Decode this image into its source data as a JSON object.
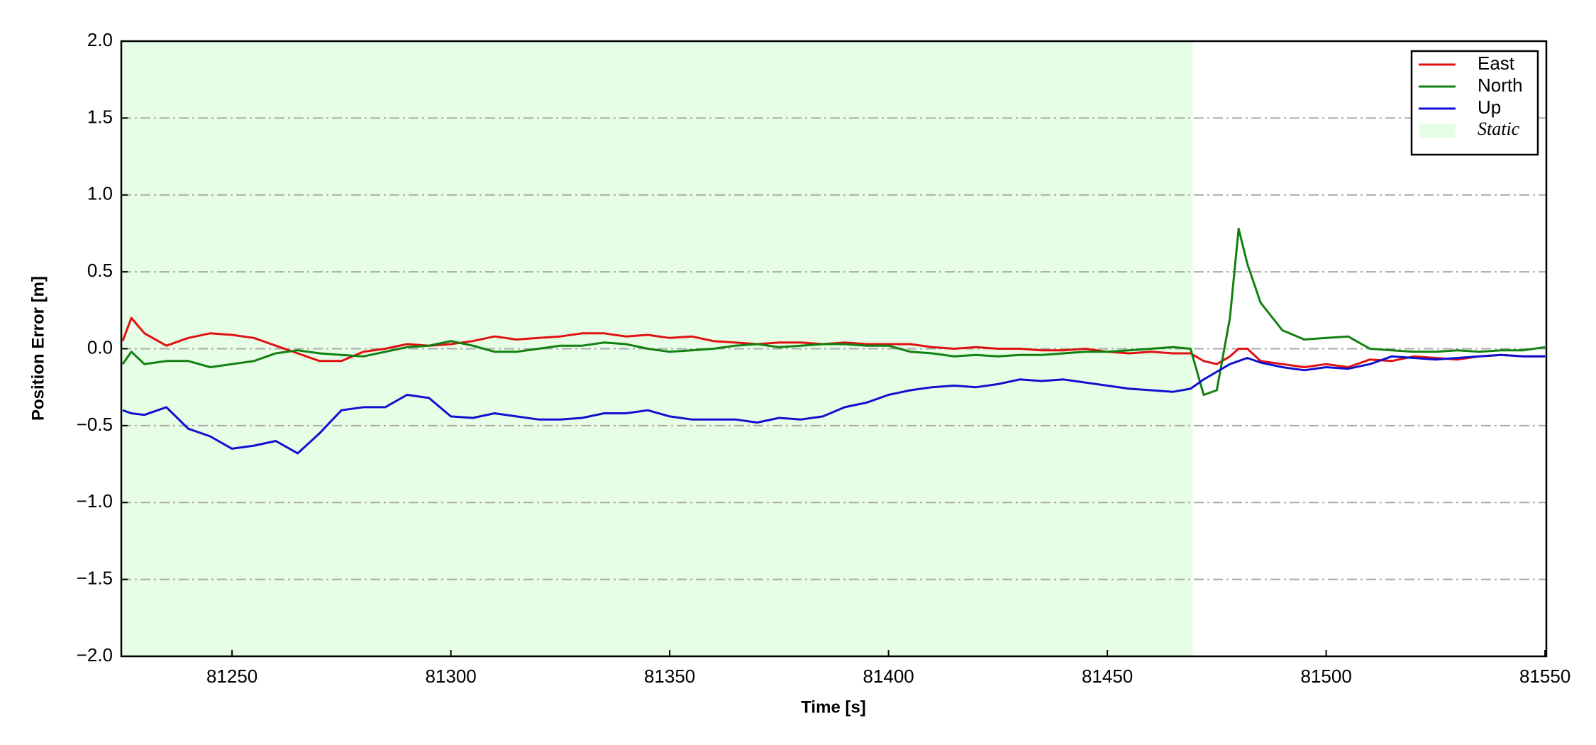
{
  "chart_data": {
    "type": "line",
    "xlabel": "Time [s]",
    "ylabel": "Position Error [m]",
    "x": [
      81225,
      81227,
      81230,
      81235,
      81240,
      81245,
      81250,
      81255,
      81260,
      81265,
      81270,
      81275,
      81280,
      81285,
      81290,
      81295,
      81300,
      81305,
      81310,
      81315,
      81320,
      81325,
      81330,
      81335,
      81340,
      81345,
      81350,
      81355,
      81360,
      81365,
      81370,
      81375,
      81380,
      81385,
      81390,
      81395,
      81400,
      81405,
      81410,
      81415,
      81420,
      81425,
      81430,
      81435,
      81440,
      81445,
      81450,
      81455,
      81460,
      81465,
      81469,
      81472,
      81475,
      81478,
      81480,
      81482,
      81485,
      81490,
      81495,
      81500,
      81505,
      81510,
      81515,
      81520,
      81525,
      81530,
      81535,
      81540,
      81545,
      81550
    ],
    "series": [
      {
        "name": "East",
        "color": "#e01010",
        "values": [
          0.05,
          0.2,
          0.1,
          0.02,
          0.07,
          0.1,
          0.09,
          0.07,
          0.02,
          -0.03,
          -0.08,
          -0.08,
          -0.02,
          0.0,
          0.03,
          0.02,
          0.03,
          0.05,
          0.08,
          0.06,
          0.07,
          0.08,
          0.1,
          0.1,
          0.08,
          0.09,
          0.07,
          0.08,
          0.05,
          0.04,
          0.03,
          0.04,
          0.04,
          0.03,
          0.04,
          0.03,
          0.03,
          0.03,
          0.01,
          0.0,
          0.01,
          0.0,
          0.0,
          -0.01,
          -0.01,
          0.0,
          -0.02,
          -0.03,
          -0.02,
          -0.03,
          -0.03,
          -0.08,
          -0.1,
          -0.05,
          0.0,
          0.0,
          -0.08,
          -0.1,
          -0.12,
          -0.1,
          -0.12,
          -0.07,
          -0.08,
          -0.05,
          -0.06,
          -0.07,
          -0.05,
          -0.04,
          -0.05,
          -0.05
        ]
      },
      {
        "name": "North",
        "color": "#108010",
        "values": [
          -0.1,
          -0.02,
          -0.1,
          -0.08,
          -0.08,
          -0.12,
          -0.1,
          -0.08,
          -0.03,
          -0.01,
          -0.03,
          -0.04,
          -0.05,
          -0.02,
          0.01,
          0.02,
          0.05,
          0.02,
          -0.02,
          -0.02,
          0.0,
          0.02,
          0.02,
          0.04,
          0.03,
          0.0,
          -0.02,
          -0.01,
          0.0,
          0.02,
          0.03,
          0.01,
          0.02,
          0.03,
          0.03,
          0.02,
          0.02,
          -0.02,
          -0.03,
          -0.05,
          -0.04,
          -0.05,
          -0.04,
          -0.04,
          -0.03,
          -0.02,
          -0.02,
          -0.01,
          0.0,
          0.01,
          0.0,
          -0.3,
          -0.27,
          0.2,
          0.78,
          0.55,
          0.3,
          0.12,
          0.06,
          0.07,
          0.08,
          0.0,
          -0.01,
          -0.02,
          -0.02,
          -0.01,
          -0.02,
          -0.01,
          -0.01,
          0.01
        ]
      },
      {
        "name": "Up",
        "color": "#1010d0",
        "values": [
          -0.4,
          -0.42,
          -0.43,
          -0.38,
          -0.52,
          -0.57,
          -0.65,
          -0.63,
          -0.6,
          -0.68,
          -0.55,
          -0.4,
          -0.38,
          -0.38,
          -0.3,
          -0.32,
          -0.44,
          -0.45,
          -0.42,
          -0.44,
          -0.46,
          -0.46,
          -0.45,
          -0.42,
          -0.42,
          -0.4,
          -0.44,
          -0.46,
          -0.46,
          -0.46,
          -0.48,
          -0.45,
          -0.46,
          -0.44,
          -0.38,
          -0.35,
          -0.3,
          -0.27,
          -0.25,
          -0.24,
          -0.25,
          -0.23,
          -0.2,
          -0.21,
          -0.2,
          -0.22,
          -0.24,
          -0.26,
          -0.27,
          -0.28,
          -0.26,
          -0.2,
          -0.15,
          -0.1,
          -0.08,
          -0.06,
          -0.09,
          -0.12,
          -0.14,
          -0.12,
          -0.13,
          -0.1,
          -0.05,
          -0.06,
          -0.07,
          -0.06,
          -0.05,
          -0.04,
          -0.05,
          -0.05
        ]
      }
    ],
    "shaded_regions": [
      {
        "name": "Static",
        "start": 81224.7,
        "end": 81469.5,
        "color": "#e6fde6"
      }
    ],
    "xlim": [
      81224.7,
      81550.3
    ],
    "ylim": [
      -2,
      2
    ],
    "xticks": [
      81250,
      81300,
      81350,
      81400,
      81450,
      81500,
      81550
    ],
    "yticks": [
      {
        "value": -2,
        "label": "−2.0"
      },
      {
        "value": -1.5,
        "label": "−1.5"
      },
      {
        "value": -1,
        "label": "−1.0"
      },
      {
        "value": -0.5,
        "label": "−0.5"
      },
      {
        "value": 0,
        "label": "0.0"
      },
      {
        "value": 0.5,
        "label": "0.5"
      },
      {
        "value": 1,
        "label": "1.0"
      },
      {
        "value": 1.5,
        "label": "1.5"
      },
      {
        "value": 2,
        "label": "2.0"
      }
    ],
    "grid": true,
    "legend": "upper right"
  }
}
